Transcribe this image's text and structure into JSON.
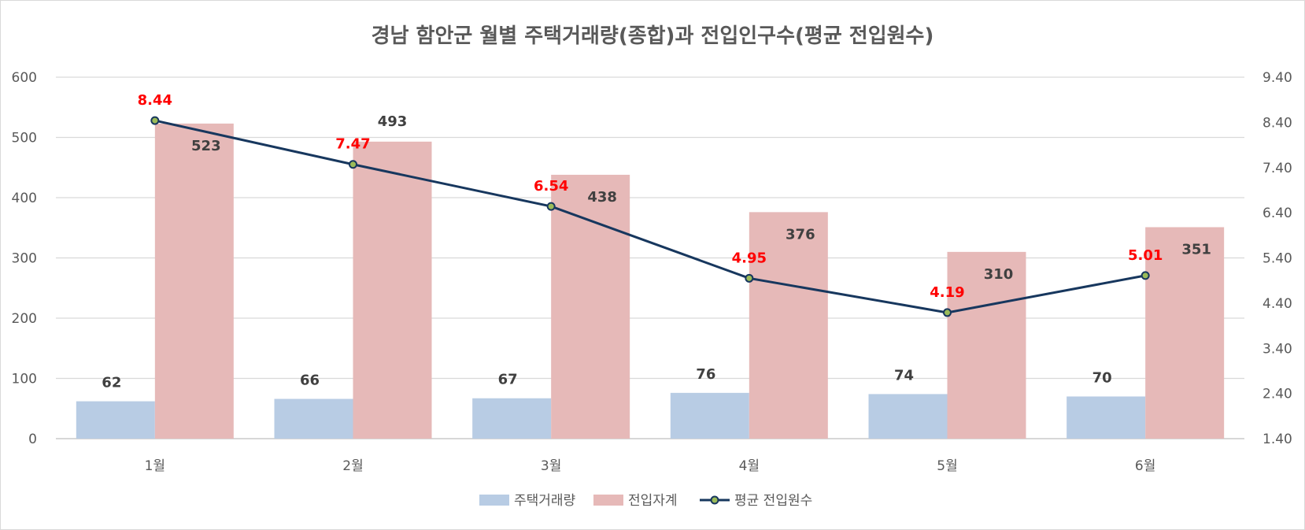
{
  "chart_data": {
    "type": "bar",
    "title": "경남 함안군 월별 주택거래량(종합)과 전입인구수(평균 전입원수)",
    "categories": [
      "1월",
      "2월",
      "3월",
      "4월",
      "5월",
      "6월"
    ],
    "series": [
      {
        "name": "주택거래량",
        "kind": "bar",
        "axis": "left",
        "color": "#b8cce4",
        "values": [
          62,
          66,
          67,
          76,
          74,
          70
        ]
      },
      {
        "name": "전입자계",
        "kind": "bar",
        "axis": "left",
        "color": "#e6b9b8",
        "values": [
          523,
          493,
          438,
          376,
          310,
          351
        ]
      },
      {
        "name": "평균 전입원수",
        "kind": "line",
        "axis": "right",
        "color": "#17375e",
        "marker_fill": "#9bbb59",
        "values": [
          8.44,
          7.47,
          6.54,
          4.95,
          4.19,
          5.01
        ]
      }
    ],
    "y_left": {
      "min": 0,
      "max": 600,
      "step": 100,
      "tick_labels": [
        "0",
        "100",
        "200",
        "300",
        "400",
        "500",
        "600"
      ]
    },
    "y_right": {
      "min": 1.4,
      "max": 9.4,
      "step": 1,
      "tick_labels": [
        "1.40",
        "2.40",
        "3.40",
        "4.40",
        "5.40",
        "6.40",
        "7.40",
        "8.40",
        "9.40"
      ]
    },
    "grid": true,
    "legend_position": "bottom"
  }
}
